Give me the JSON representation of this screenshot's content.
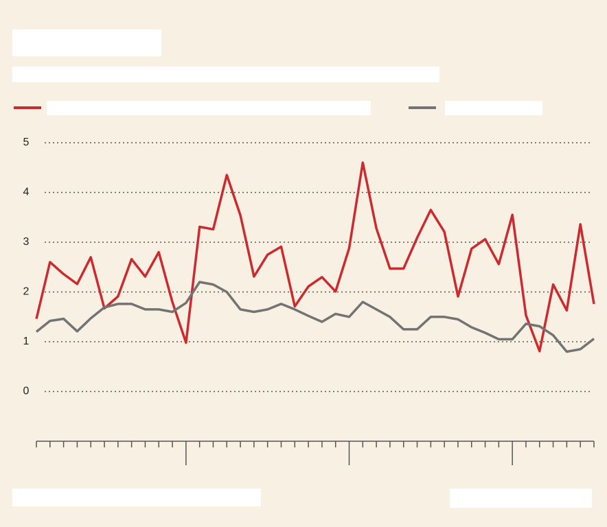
{
  "chart_data": {
    "type": "line",
    "categories": [
      null,
      null,
      null,
      null,
      null,
      null,
      null,
      null,
      null,
      null,
      null,
      null,
      null,
      null,
      null,
      null,
      null,
      null,
      null,
      null,
      null,
      null,
      null,
      null,
      null,
      null,
      null,
      null,
      null,
      null,
      null,
      null,
      null,
      null,
      null,
      null,
      null,
      null,
      null,
      null,
      null,
      null
    ],
    "series": [
      {
        "color": "#cc2a2f",
        "values": [
          1.46,
          2.6,
          2.36,
          2.16,
          2.7,
          1.67,
          1.91,
          2.66,
          2.31,
          2.8,
          1.8,
          0.98,
          3.31,
          3.26,
          4.35,
          3.54,
          2.31,
          2.75,
          2.91,
          1.71,
          2.11,
          2.3,
          2.01,
          2.88,
          4.6,
          3.28,
          2.47,
          2.47,
          3.09,
          3.65,
          3.21,
          1.91,
          2.87,
          3.06,
          2.56,
          3.55,
          1.53,
          0.81,
          2.15,
          1.63,
          3.36,
          1.76
        ]
      },
      {
        "color": "#737373",
        "values": [
          1.2,
          1.42,
          1.46,
          1.21,
          1.47,
          1.69,
          1.76,
          1.76,
          1.65,
          1.65,
          1.6,
          1.78,
          2.2,
          2.15,
          2.0,
          1.65,
          1.6,
          1.65,
          1.76,
          1.65,
          1.52,
          1.4,
          1.56,
          1.5,
          1.8,
          1.65,
          1.5,
          1.25,
          1.25,
          1.5,
          1.5,
          1.45,
          1.29,
          1.18,
          1.05,
          1.05,
          1.36,
          1.31,
          1.13,
          0.8,
          0.85,
          1.06
        ]
      }
    ],
    "ylim": [
      -1,
      5
    ],
    "yticks": [
      0,
      1,
      2,
      3,
      4,
      5
    ],
    "grid": true
  }
}
